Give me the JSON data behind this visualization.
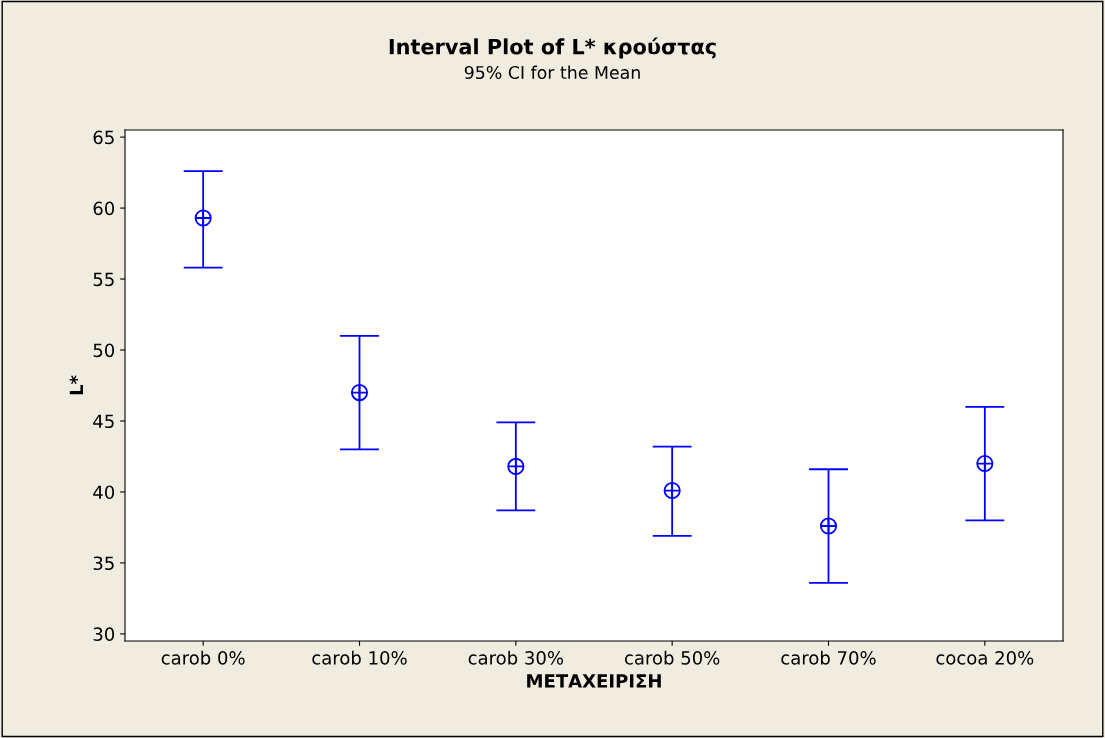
{
  "chart_data": {
    "type": "scatter",
    "title": "Interval Plot of L* κρούστας",
    "subtitle": "95% CI for the Mean",
    "xlabel": "ΜΕΤΑΧΕΙΡΙΣΗ",
    "ylabel": "L*",
    "categories": [
      "carob 0%",
      "carob 10%",
      "carob 30%",
      "carob 50%",
      "carob 70%",
      "cocoa 20%"
    ],
    "series": [
      {
        "color": "#0000ff",
        "values": [
          59.3,
          47.0,
          41.8,
          40.1,
          37.6,
          42.0
        ],
        "errors": [
          [
            55.8,
            62.6
          ],
          [
            43.0,
            51.0
          ],
          [
            38.7,
            44.9
          ],
          [
            36.9,
            43.2
          ],
          [
            33.6,
            41.6
          ],
          [
            38.0,
            46.0
          ]
        ]
      }
    ],
    "ylim": [
      29.5,
      65.5
    ],
    "yticks": [
      30,
      35,
      40,
      45,
      50,
      55,
      60,
      65
    ],
    "grid": false,
    "legend": false,
    "marker": "circle"
  }
}
